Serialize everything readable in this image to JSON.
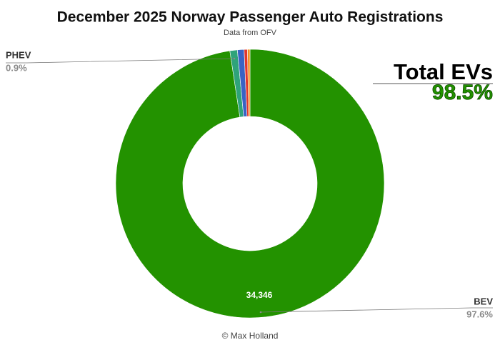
{
  "chart_data": {
    "type": "pie",
    "donut": true,
    "title": "December 2025 Norway Passenger Auto Registrations",
    "subtitle": "Data from OFV",
    "credit": "© Max Holland",
    "categories": [
      "BEV",
      "PHEV",
      null,
      null,
      null
    ],
    "values": [
      97.6,
      0.9,
      0.8,
      0.4,
      0.3
    ],
    "value_labels": [
      "97.6%",
      "0.9%",
      null,
      null,
      null
    ],
    "counts": [
      34346,
      null,
      null,
      null,
      null
    ],
    "count_labels": [
      "34,346",
      null,
      null,
      null,
      null
    ],
    "colors": [
      "#239200",
      "#2fa37a",
      "#3a63c4",
      "#e3362c",
      "#f2901f"
    ],
    "annotation": {
      "label": "Total EVs",
      "value_label": "98.5%"
    }
  }
}
